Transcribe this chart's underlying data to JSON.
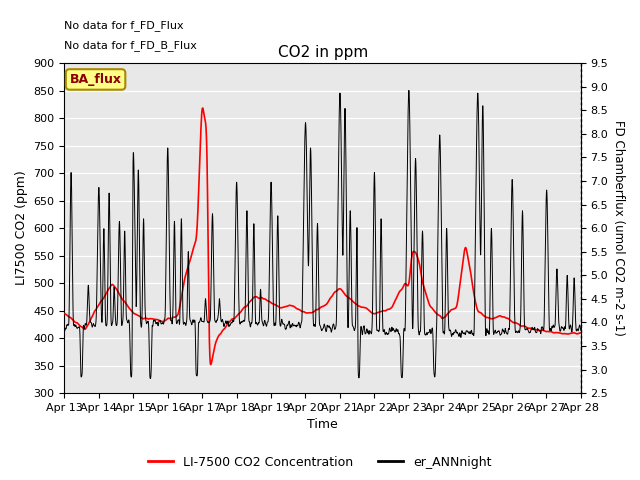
{
  "title": "CO2 in ppm",
  "xlabel": "Time",
  "ylabel_left": "LI7500 CO2 (ppm)",
  "ylabel_right_display": "FD Chamberflux (umol CO2 m-2 s-1)",
  "ylim_left": [
    300,
    900
  ],
  "ylim_right": [
    2.5,
    9.5
  ],
  "yticks_left": [
    300,
    350,
    400,
    450,
    500,
    550,
    600,
    650,
    700,
    750,
    800,
    850,
    900
  ],
  "yticks_right": [
    2.5,
    3.0,
    3.5,
    4.0,
    4.5,
    5.0,
    5.5,
    6.0,
    6.5,
    7.0,
    7.5,
    8.0,
    8.5,
    9.0,
    9.5
  ],
  "xtick_labels": [
    "Apr 13",
    "Apr 14",
    "Apr 15",
    "Apr 16",
    "Apr 17",
    "Apr 18",
    "Apr 19",
    "Apr 20",
    "Apr 21",
    "Apr 22",
    "Apr 23",
    "Apr 24",
    "Apr 25",
    "Apr 26",
    "Apr 27",
    "Apr 28"
  ],
  "note1": "No data for f_FD_Flux",
  "note2": "No data for f_FD_B_Flux",
  "box_label": "BA_flux",
  "legend_red": "LI-7500 CO2 Concentration",
  "legend_black": "er_ANNnight",
  "bg_color": "#e8e8e8",
  "red_color": "#ff0000",
  "black_color": "#000000"
}
